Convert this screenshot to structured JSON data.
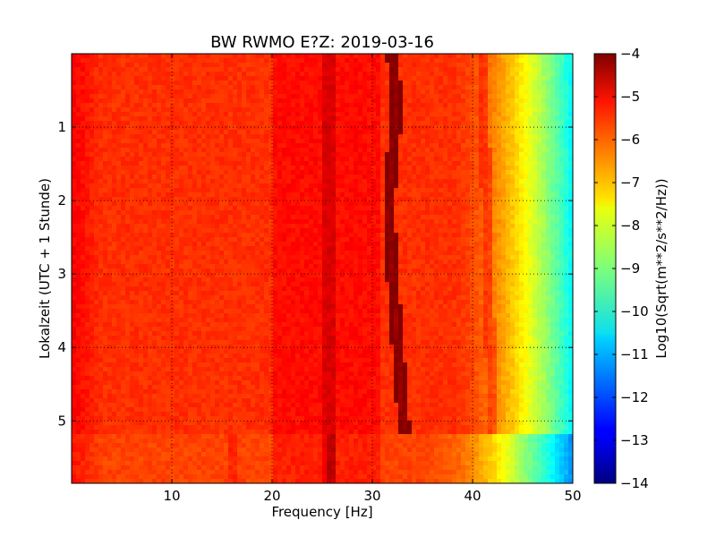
{
  "chart_data": {
    "type": "heatmap",
    "title": "BW RWMO E?Z: 2019-03-16",
    "xlabel": "Frequency [Hz]",
    "ylabel": "Lokalzeit (UTC + 1 Stunde)",
    "xlim": [
      0,
      50
    ],
    "ylim": [
      5.85,
      0
    ],
    "xticks": [
      10,
      20,
      30,
      40,
      50
    ],
    "yticks": [
      1,
      2,
      3,
      4,
      5
    ],
    "grid": true,
    "colormap": "jet",
    "colorbar": {
      "label": "Log10(Sqrt(m**2/s**2/Hz))",
      "range": [
        -14,
        -4
      ],
      "ticks": [
        -4,
        -5,
        -6,
        -7,
        -8,
        -9,
        -10,
        -11,
        -12,
        -13,
        -14
      ]
    },
    "background_level": -5.7,
    "features": [
      {
        "kind": "spectral-line",
        "freq_start": 32.0,
        "freq_end": 33.2,
        "time_start": 0,
        "time_end": 5.2,
        "level": -4.3
      },
      {
        "kind": "spectral-line",
        "freq_start": 25.0,
        "freq_end": 26.5,
        "time_start": 0,
        "time_end": 5.85,
        "level": -4.9
      },
      {
        "kind": "spectral-line",
        "freq_start": 41.0,
        "freq_end": 42.0,
        "time_start": 0,
        "time_end": 5.2,
        "level": -5.1
      },
      {
        "kind": "rolloff-start",
        "freq": 38,
        "level": -6.0
      },
      {
        "kind": "band-edge",
        "freq": 50,
        "level": -10.3
      }
    ]
  }
}
